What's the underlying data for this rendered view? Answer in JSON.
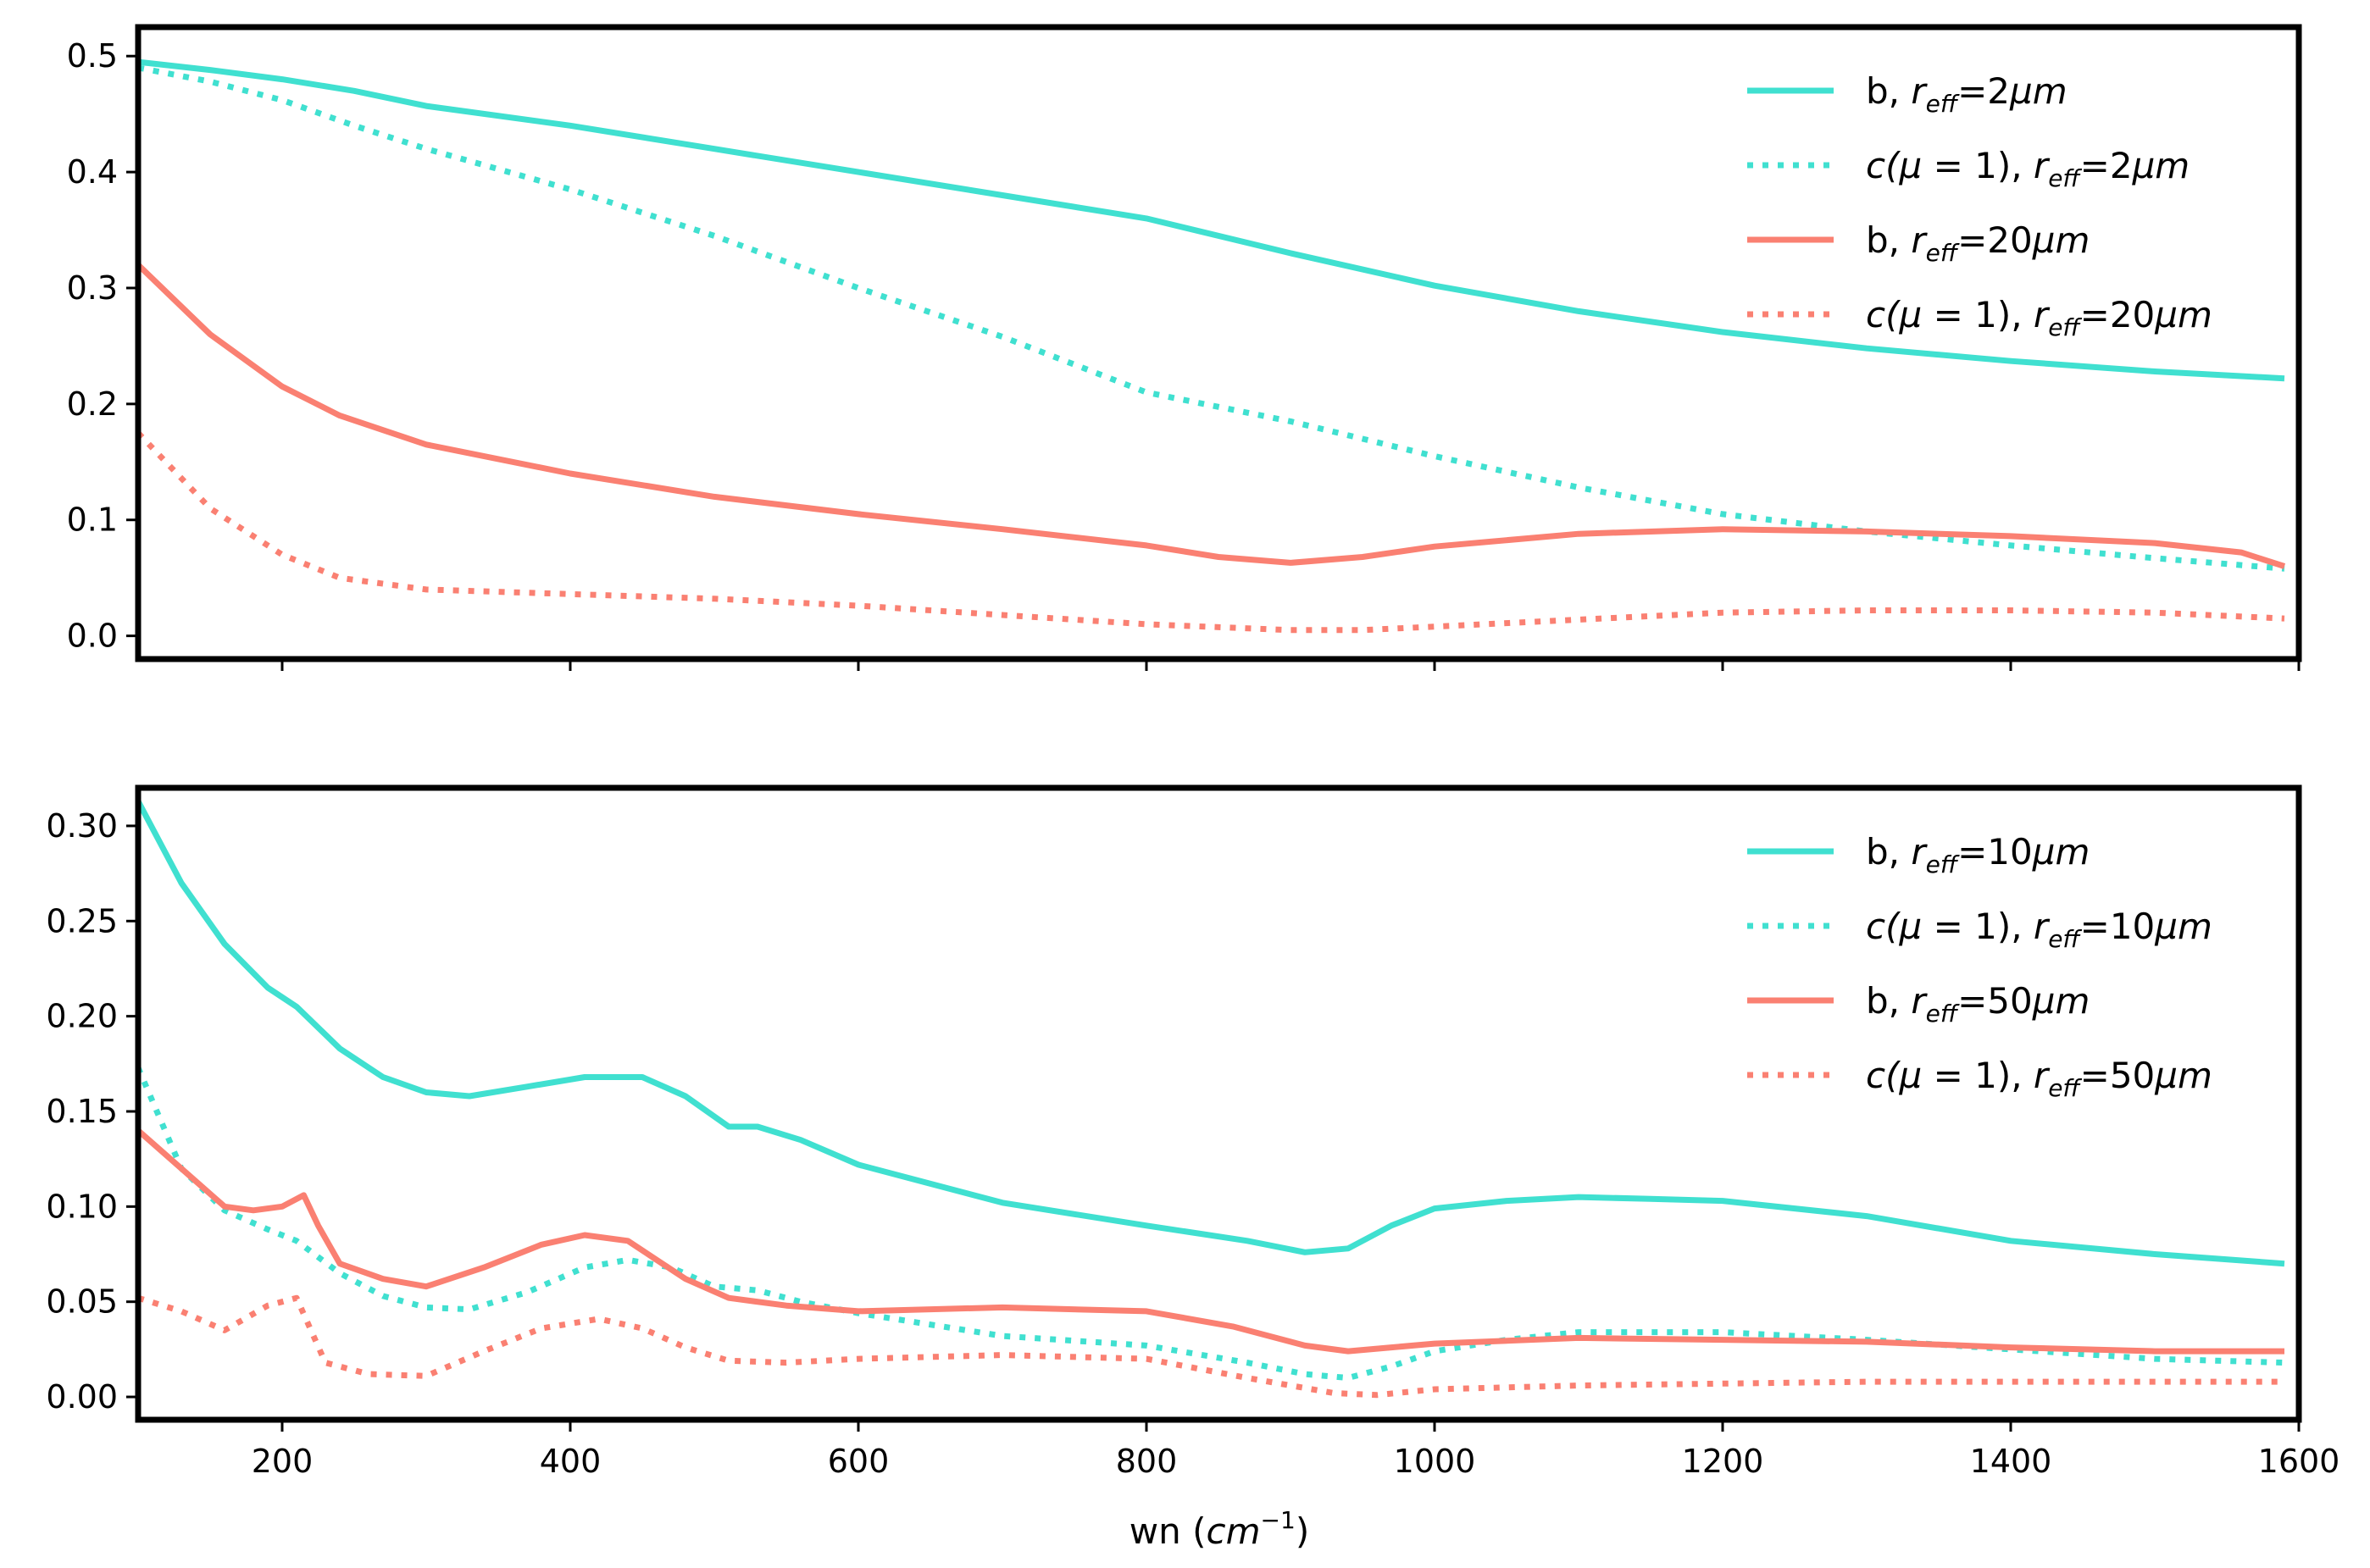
{
  "figure": {
    "xlabel": {
      "main": "wn (",
      "var": "cm",
      "sup": "−1",
      "close": ")"
    }
  },
  "colors": {
    "turquoise": "#40e0d0",
    "salmon": "#fa8072"
  },
  "chart_data": [
    {
      "type": "line",
      "xlim": [
        100,
        1600
      ],
      "ylim": [
        -0.02,
        0.525
      ],
      "xticks": [
        200,
        400,
        600,
        800,
        1000,
        1200,
        1400,
        1600
      ],
      "xtick_labels_shown": false,
      "yticks": [
        0.0,
        0.1,
        0.2,
        0.3,
        0.4,
        0.5
      ],
      "ytick_labels": [
        "0.0",
        "0.1",
        "0.2",
        "0.3",
        "0.4",
        "0.5"
      ],
      "legend_position": "upper right",
      "series": [
        {
          "legend": {
            "pre": "b, ",
            "var": "r",
            "sub": "eff",
            "post": "=2",
            "unit": "μm"
          },
          "color": "#40e0d0",
          "style": "solid",
          "x": [
            100,
            150,
            200,
            250,
            300,
            400,
            500,
            600,
            700,
            800,
            900,
            1000,
            1100,
            1200,
            1300,
            1400,
            1500,
            1590
          ],
          "y": [
            0.495,
            0.488,
            0.48,
            0.47,
            0.457,
            0.44,
            0.42,
            0.4,
            0.38,
            0.36,
            0.33,
            0.302,
            0.28,
            0.262,
            0.248,
            0.237,
            0.228,
            0.222
          ]
        },
        {
          "legend": {
            "pre": "c(",
            "mu": "μ",
            "eq": " = 1), ",
            "var": "r",
            "sub": "eff",
            "post": "=2",
            "unit": "μm"
          },
          "color": "#40e0d0",
          "style": "dotted",
          "x": [
            100,
            150,
            200,
            250,
            300,
            400,
            500,
            600,
            700,
            800,
            900,
            1000,
            1100,
            1200,
            1300,
            1400,
            1500,
            1590
          ],
          "y": [
            0.49,
            0.478,
            0.462,
            0.44,
            0.42,
            0.385,
            0.345,
            0.3,
            0.258,
            0.21,
            0.185,
            0.155,
            0.128,
            0.105,
            0.09,
            0.078,
            0.067,
            0.058
          ]
        },
        {
          "legend": {
            "pre": "b, ",
            "var": "r",
            "sub": "eff",
            "post": "=20",
            "unit": "μm"
          },
          "color": "#fa8072",
          "style": "solid",
          "x": [
            100,
            150,
            200,
            240,
            300,
            400,
            500,
            600,
            700,
            800,
            850,
            900,
            950,
            1000,
            1100,
            1200,
            1300,
            1400,
            1500,
            1560,
            1590
          ],
          "y": [
            0.32,
            0.26,
            0.215,
            0.19,
            0.165,
            0.14,
            0.12,
            0.105,
            0.092,
            0.078,
            0.068,
            0.063,
            0.068,
            0.077,
            0.088,
            0.092,
            0.09,
            0.086,
            0.08,
            0.072,
            0.06
          ]
        },
        {
          "legend": {
            "pre": "c(",
            "mu": "μ",
            "eq": " = 1), ",
            "var": "r",
            "sub": "eff",
            "post": "=20",
            "unit": "μm"
          },
          "color": "#fa8072",
          "style": "dotted",
          "x": [
            100,
            150,
            200,
            240,
            300,
            400,
            500,
            600,
            700,
            800,
            900,
            950,
            1000,
            1100,
            1200,
            1300,
            1400,
            1500,
            1590
          ],
          "y": [
            0.175,
            0.11,
            0.07,
            0.05,
            0.04,
            0.036,
            0.032,
            0.026,
            0.018,
            0.01,
            0.005,
            0.005,
            0.008,
            0.014,
            0.02,
            0.022,
            0.022,
            0.02,
            0.015
          ]
        }
      ]
    },
    {
      "type": "line",
      "xlim": [
        100,
        1600
      ],
      "ylim": [
        -0.012,
        0.32
      ],
      "xticks": [
        200,
        400,
        600,
        800,
        1000,
        1200,
        1400,
        1600
      ],
      "xtick_labels": [
        "200",
        "400",
        "600",
        "800",
        "1000",
        "1200",
        "1400",
        "1600"
      ],
      "yticks": [
        0.0,
        0.05,
        0.1,
        0.15,
        0.2,
        0.25,
        0.3
      ],
      "ytick_labels": [
        "0.00",
        "0.05",
        "0.10",
        "0.15",
        "0.20",
        "0.25",
        "0.30"
      ],
      "legend_position": "upper right",
      "series": [
        {
          "legend": {
            "pre": "b, ",
            "var": "r",
            "sub": "eff",
            "post": "=10",
            "unit": "μm"
          },
          "color": "#40e0d0",
          "style": "solid",
          "x": [
            100,
            130,
            160,
            190,
            210,
            240,
            270,
            300,
            330,
            370,
            410,
            450,
            480,
            510,
            530,
            560,
            600,
            700,
            800,
            870,
            910,
            940,
            970,
            1000,
            1050,
            1100,
            1150,
            1200,
            1300,
            1400,
            1500,
            1590
          ],
          "y": [
            0.313,
            0.27,
            0.238,
            0.215,
            0.205,
            0.183,
            0.168,
            0.16,
            0.158,
            0.163,
            0.168,
            0.168,
            0.158,
            0.142,
            0.142,
            0.135,
            0.122,
            0.102,
            0.09,
            0.082,
            0.076,
            0.078,
            0.09,
            0.099,
            0.103,
            0.105,
            0.104,
            0.103,
            0.095,
            0.082,
            0.075,
            0.07
          ]
        },
        {
          "legend": {
            "pre": "c(",
            "mu": "μ",
            "eq": " = 1), ",
            "var": "r",
            "sub": "eff",
            "post": "=10",
            "unit": "μm"
          },
          "color": "#40e0d0",
          "style": "dotted",
          "x": [
            100,
            130,
            160,
            190,
            210,
            240,
            270,
            300,
            330,
            370,
            410,
            440,
            470,
            500,
            530,
            560,
            600,
            700,
            800,
            870,
            910,
            940,
            970,
            1000,
            1050,
            1100,
            1200,
            1300,
            1400,
            1500,
            1590
          ],
          "y": [
            0.173,
            0.12,
            0.098,
            0.088,
            0.082,
            0.065,
            0.053,
            0.047,
            0.046,
            0.055,
            0.068,
            0.072,
            0.068,
            0.058,
            0.056,
            0.05,
            0.044,
            0.032,
            0.027,
            0.018,
            0.012,
            0.01,
            0.016,
            0.024,
            0.03,
            0.034,
            0.034,
            0.03,
            0.025,
            0.02,
            0.018
          ]
        },
        {
          "legend": {
            "pre": "b, ",
            "var": "r",
            "sub": "eff",
            "post": "=50",
            "unit": "μm"
          },
          "color": "#fa8072",
          "style": "solid",
          "x": [
            100,
            130,
            160,
            180,
            200,
            215,
            225,
            240,
            270,
            300,
            340,
            380,
            410,
            440,
            460,
            480,
            510,
            550,
            600,
            700,
            800,
            860,
            910,
            940,
            970,
            1000,
            1100,
            1200,
            1300,
            1400,
            1500,
            1590
          ],
          "y": [
            0.14,
            0.12,
            0.1,
            0.098,
            0.1,
            0.106,
            0.09,
            0.07,
            0.062,
            0.058,
            0.068,
            0.08,
            0.085,
            0.082,
            0.072,
            0.062,
            0.052,
            0.048,
            0.045,
            0.047,
            0.045,
            0.037,
            0.027,
            0.024,
            0.026,
            0.028,
            0.031,
            0.03,
            0.029,
            0.026,
            0.024,
            0.024
          ]
        },
        {
          "legend": {
            "pre": "c(",
            "mu": "μ",
            "eq": " = 1), ",
            "var": "r",
            "sub": "eff",
            "post": "=50",
            "unit": "μm"
          },
          "color": "#fa8072",
          "style": "dotted",
          "x": [
            100,
            130,
            160,
            190,
            210,
            230,
            260,
            300,
            340,
            380,
            420,
            450,
            480,
            510,
            550,
            600,
            700,
            800,
            870,
            930,
            960,
            1000,
            1100,
            1200,
            1300,
            1400,
            1500,
            1590
          ],
          "y": [
            0.052,
            0.045,
            0.035,
            0.048,
            0.052,
            0.018,
            0.012,
            0.011,
            0.024,
            0.036,
            0.041,
            0.036,
            0.026,
            0.019,
            0.018,
            0.02,
            0.022,
            0.02,
            0.01,
            0.002,
            0.001,
            0.004,
            0.006,
            0.007,
            0.008,
            0.008,
            0.008,
            0.008
          ]
        }
      ]
    }
  ]
}
